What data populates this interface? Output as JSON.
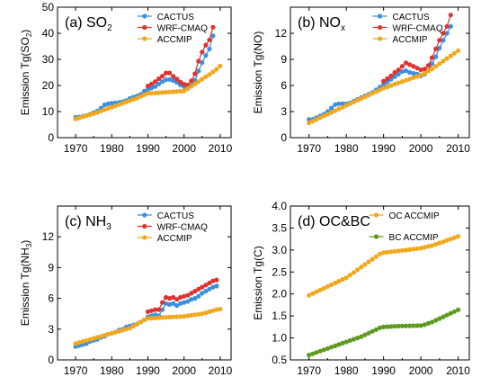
{
  "chart_data": [
    {
      "type": "line",
      "panel_label": "(a) SO",
      "panel_sub": "2",
      "ylabel": "Emission Tg(SO",
      "ylabel_sub": "2",
      "ylabel_suffix": ")",
      "xlim": [
        1965,
        2013
      ],
      "ylim": [
        0,
        50
      ],
      "xticks": [
        1970,
        1980,
        1990,
        2000,
        2010
      ],
      "yticks": [
        0,
        10,
        20,
        30,
        40,
        50
      ],
      "ytick_labels": [
        "0",
        "10",
        "20",
        "30",
        "40",
        "50"
      ],
      "legend_position": "top-center",
      "series": [
        {
          "name": "CACTUS",
          "color": "#3a8fe0",
          "x": [
            1970,
            1971,
            1972,
            1973,
            1974,
            1975,
            1976,
            1977,
            1978,
            1979,
            1980,
            1981,
            1982,
            1983,
            1984,
            1985,
            1986,
            1987,
            1988,
            1989,
            1990,
            1991,
            1992,
            1993,
            1994,
            1995,
            1996,
            1997,
            1998,
            1999,
            2000,
            2001,
            2002,
            2003,
            2004,
            2005,
            2006,
            2007,
            2008
          ],
          "y": [
            7.8,
            7.9,
            8.2,
            8.5,
            9.0,
            9.6,
            10.2,
            11.3,
            12.6,
            13.0,
            13.2,
            13.3,
            13.5,
            13.8,
            14.2,
            15.0,
            15.5,
            16.0,
            16.6,
            17.8,
            18.4,
            19.0,
            19.6,
            20.6,
            21.5,
            22.2,
            22.3,
            21.9,
            21.2,
            20.2,
            19.6,
            19.5,
            20.0,
            22.0,
            25.5,
            28.8,
            31.5,
            34.0,
            39.0
          ]
        },
        {
          "name": "WRF-CMAQ",
          "color": "#e0322e",
          "x": [
            1990,
            1991,
            1992,
            1993,
            1994,
            1995,
            1996,
            1997,
            1998,
            1999,
            2000,
            2001,
            2002,
            2003,
            2004,
            2005,
            2006,
            2007,
            2008
          ],
          "y": [
            19.8,
            20.6,
            21.5,
            22.6,
            23.6,
            24.8,
            24.8,
            23.5,
            22.5,
            21.3,
            20.5,
            20.2,
            21.8,
            24.5,
            29.3,
            32.8,
            35.5,
            37.5,
            42.3
          ]
        },
        {
          "name": "ACCMIP",
          "color": "#f2a81d",
          "x": [
            1970,
            1971,
            1972,
            1973,
            1974,
            1975,
            1976,
            1977,
            1978,
            1979,
            1980,
            1981,
            1982,
            1983,
            1984,
            1985,
            1986,
            1987,
            1988,
            1989,
            1990,
            1991,
            1992,
            1993,
            1994,
            1995,
            1996,
            1997,
            1998,
            1999,
            2000,
            2001,
            2002,
            2003,
            2004,
            2005,
            2006,
            2007,
            2008,
            2009,
            2010
          ],
          "y": [
            7.2,
            7.6,
            8.0,
            8.4,
            8.8,
            9.2,
            9.7,
            10.2,
            10.7,
            11.2,
            11.7,
            12.2,
            12.7,
            13.2,
            13.7,
            14.2,
            14.7,
            15.2,
            15.8,
            16.4,
            17.0,
            17.0,
            17.1,
            17.2,
            17.3,
            17.4,
            17.5,
            17.6,
            17.7,
            17.8,
            17.9,
            18.8,
            19.7,
            20.6,
            21.5,
            22.4,
            23.3,
            24.2,
            25.2,
            26.2,
            27.5
          ]
        }
      ]
    },
    {
      "type": "line",
      "panel_label": "(b) NO",
      "panel_sub": "x",
      "ylabel": "Emission Tg(NO)",
      "ylabel_sub": "",
      "ylabel_suffix": "",
      "xlim": [
        1965,
        2013
      ],
      "ylim": [
        0,
        15
      ],
      "xticks": [
        1970,
        1980,
        1990,
        2000,
        2010
      ],
      "yticks": [
        0,
        3,
        6,
        9,
        12
      ],
      "ytick_labels": [
        "0",
        "3",
        "6",
        "9",
        "12"
      ],
      "legend_position": "top-center",
      "series": [
        {
          "name": "CACTUS",
          "color": "#3a8fe0",
          "x": [
            1970,
            1971,
            1972,
            1973,
            1974,
            1975,
            1976,
            1977,
            1978,
            1979,
            1980,
            1981,
            1982,
            1983,
            1984,
            1985,
            1986,
            1987,
            1988,
            1989,
            1990,
            1991,
            1992,
            1993,
            1994,
            1995,
            1996,
            1997,
            1998,
            1999,
            2000,
            2001,
            2002,
            2003,
            2004,
            2005,
            2006,
            2007,
            2008
          ],
          "y": [
            2.1,
            2.1,
            2.3,
            2.5,
            2.7,
            3.0,
            3.4,
            3.8,
            3.9,
            3.9,
            3.9,
            4.0,
            4.2,
            4.4,
            4.6,
            4.8,
            5.0,
            5.2,
            5.5,
            5.8,
            6.1,
            6.4,
            6.7,
            7.0,
            7.3,
            7.6,
            7.7,
            7.5,
            7.4,
            7.3,
            7.1,
            7.3,
            7.7,
            8.5,
            9.3,
            10.3,
            11.2,
            12.0,
            12.8
          ]
        },
        {
          "name": "WRF-CMAQ",
          "color": "#e0322e",
          "x": [
            1990,
            1991,
            1992,
            1993,
            1994,
            1995,
            1996,
            1997,
            1998,
            1999,
            2000,
            2001,
            2002,
            2003,
            2004,
            2005,
            2006,
            2007,
            2008
          ],
          "y": [
            6.5,
            6.8,
            7.1,
            7.5,
            7.8,
            8.2,
            8.6,
            8.4,
            8.2,
            8.0,
            7.8,
            7.9,
            8.3,
            9.2,
            10.2,
            11.2,
            12.0,
            12.8,
            14.1
          ]
        },
        {
          "name": "ACCMIP",
          "color": "#f2a81d",
          "x": [
            1970,
            1971,
            1972,
            1973,
            1974,
            1975,
            1976,
            1977,
            1978,
            1979,
            1980,
            1981,
            1982,
            1983,
            1984,
            1985,
            1986,
            1987,
            1988,
            1989,
            1990,
            1991,
            1992,
            1993,
            1994,
            1995,
            1996,
            1997,
            1998,
            1999,
            2000,
            2001,
            2002,
            2003,
            2004,
            2005,
            2006,
            2007,
            2008,
            2009,
            2010
          ],
          "y": [
            1.7,
            1.9,
            2.1,
            2.3,
            2.5,
            2.7,
            2.9,
            3.1,
            3.3,
            3.5,
            3.7,
            3.9,
            4.1,
            4.3,
            4.5,
            4.7,
            4.9,
            5.1,
            5.3,
            5.5,
            5.7,
            5.85,
            6.0,
            6.15,
            6.3,
            6.45,
            6.6,
            6.75,
            6.9,
            7.05,
            7.2,
            7.4,
            7.65,
            7.9,
            8.2,
            8.5,
            8.8,
            9.1,
            9.4,
            9.7,
            10.0
          ]
        }
      ]
    },
    {
      "type": "line",
      "panel_label": "(c) NH",
      "panel_sub": "3",
      "ylabel": "Emission Tg(NH",
      "ylabel_sub": "3",
      "ylabel_suffix": ")",
      "xlim": [
        1965,
        2013
      ],
      "ylim": [
        0,
        15
      ],
      "xticks": [
        1970,
        1980,
        1990,
        2000,
        2010
      ],
      "yticks": [
        0,
        3,
        6,
        9,
        12
      ],
      "ytick_labels": [
        "0",
        "3",
        "6",
        "9",
        "12"
      ],
      "legend_position": "top-center",
      "series": [
        {
          "name": "CACTUS",
          "color": "#3a8fe0",
          "x": [
            1970,
            1971,
            1972,
            1973,
            1974,
            1975,
            1976,
            1977,
            1978,
            1979,
            1980,
            1981,
            1982,
            1983,
            1984,
            1985,
            1986,
            1987,
            1988,
            1989,
            1990,
            1991,
            1992,
            1993,
            1994,
            1995,
            1996,
            1997,
            1998,
            1999,
            2000,
            2001,
            2002,
            2003,
            2004,
            2005,
            2006,
            2007,
            2008,
            2009
          ],
          "y": [
            1.3,
            1.4,
            1.5,
            1.6,
            1.8,
            1.9,
            2.0,
            2.2,
            2.3,
            2.5,
            2.6,
            2.7,
            2.9,
            3.0,
            3.2,
            3.3,
            3.4,
            3.5,
            3.7,
            3.9,
            4.2,
            4.3,
            4.4,
            4.3,
            4.9,
            5.5,
            5.4,
            5.5,
            5.3,
            5.5,
            5.6,
            5.7,
            5.9,
            6.0,
            6.2,
            6.5,
            6.7,
            6.9,
            7.1,
            7.2
          ]
        },
        {
          "name": "WRF-CMAQ",
          "color": "#e0322e",
          "x": [
            1990,
            1991,
            1992,
            1993,
            1994,
            1995,
            1996,
            1997,
            1998,
            1999,
            2000,
            2001,
            2002,
            2003,
            2004,
            2005,
            2006,
            2007,
            2008,
            2009
          ],
          "y": [
            4.7,
            4.8,
            4.9,
            4.9,
            5.6,
            6.1,
            6.0,
            6.1,
            5.9,
            6.1,
            6.2,
            6.3,
            6.5,
            6.7,
            6.9,
            7.1,
            7.3,
            7.5,
            7.7,
            7.8
          ]
        },
        {
          "name": "ACCMIP",
          "color": "#f2a81d",
          "x": [
            1970,
            1971,
            1972,
            1973,
            1974,
            1975,
            1976,
            1977,
            1978,
            1979,
            1980,
            1981,
            1982,
            1983,
            1984,
            1985,
            1986,
            1987,
            1988,
            1989,
            1990,
            1991,
            1992,
            1993,
            1994,
            1995,
            1996,
            1997,
            1998,
            1999,
            2000,
            2001,
            2002,
            2003,
            2004,
            2005,
            2006,
            2007,
            2008,
            2009,
            2010
          ],
          "y": [
            1.6,
            1.7,
            1.8,
            1.9,
            2.0,
            2.1,
            2.2,
            2.3,
            2.4,
            2.5,
            2.6,
            2.7,
            2.8,
            2.9,
            3.0,
            3.1,
            3.3,
            3.5,
            3.7,
            3.9,
            4.05,
            4.07,
            4.09,
            4.11,
            4.13,
            4.15,
            4.17,
            4.19,
            4.21,
            4.23,
            4.25,
            4.3,
            4.35,
            4.4,
            4.45,
            4.5,
            4.6,
            4.7,
            4.8,
            4.9,
            4.95
          ]
        }
      ]
    },
    {
      "type": "line",
      "panel_label": "(d) OC&BC",
      "panel_sub": "",
      "ylabel": "Emission Tg(C)",
      "ylabel_sub": "",
      "ylabel_suffix": "",
      "xlim": [
        1965,
        2013
      ],
      "ylim": [
        0.5,
        4.0
      ],
      "xticks": [
        1970,
        1980,
        1990,
        2000,
        2010
      ],
      "yticks": [
        0.5,
        1.0,
        1.5,
        2.0,
        2.5,
        3.0,
        3.5,
        4.0
      ],
      "ytick_labels": [
        "0.5",
        "1.0",
        "1.5",
        "2.0",
        "2.5",
        "3.0",
        "3.5",
        "4.0"
      ],
      "legend_position": "top-center",
      "series": [
        {
          "name": "OC ACCMIP",
          "color": "#f2a81d",
          "x": [
            1970,
            1971,
            1972,
            1973,
            1974,
            1975,
            1976,
            1977,
            1978,
            1979,
            1980,
            1981,
            1982,
            1983,
            1984,
            1985,
            1986,
            1987,
            1988,
            1989,
            1990,
            1991,
            1992,
            1993,
            1994,
            1995,
            1996,
            1997,
            1998,
            1999,
            2000,
            2001,
            2002,
            2003,
            2004,
            2005,
            2006,
            2007,
            2008,
            2009,
            2010
          ],
          "y": [
            1.97,
            2.01,
            2.05,
            2.09,
            2.13,
            2.17,
            2.21,
            2.25,
            2.29,
            2.33,
            2.37,
            2.43,
            2.49,
            2.55,
            2.61,
            2.67,
            2.73,
            2.79,
            2.85,
            2.91,
            2.94,
            2.95,
            2.96,
            2.97,
            2.98,
            2.99,
            3.0,
            3.01,
            3.02,
            3.03,
            3.04,
            3.06,
            3.08,
            3.1,
            3.13,
            3.16,
            3.19,
            3.22,
            3.25,
            3.28,
            3.31
          ]
        },
        {
          "name": "BC ACCMIP",
          "color": "#5e9a1e",
          "x": [
            1970,
            1971,
            1972,
            1973,
            1974,
            1975,
            1976,
            1977,
            1978,
            1979,
            1980,
            1981,
            1982,
            1983,
            1984,
            1985,
            1986,
            1987,
            1988,
            1989,
            1990,
            1991,
            1992,
            1993,
            1994,
            1995,
            1996,
            1997,
            1998,
            1999,
            2000,
            2001,
            2002,
            2003,
            2004,
            2005,
            2006,
            2007,
            2008,
            2009,
            2010
          ],
          "y": [
            0.61,
            0.64,
            0.67,
            0.7,
            0.73,
            0.76,
            0.79,
            0.82,
            0.85,
            0.88,
            0.91,
            0.94,
            0.97,
            1.0,
            1.03,
            1.07,
            1.11,
            1.15,
            1.19,
            1.23,
            1.25,
            1.255,
            1.26,
            1.265,
            1.27,
            1.272,
            1.274,
            1.276,
            1.278,
            1.28,
            1.28,
            1.3,
            1.33,
            1.36,
            1.4,
            1.44,
            1.48,
            1.52,
            1.56,
            1.6,
            1.64
          ]
        }
      ]
    }
  ]
}
